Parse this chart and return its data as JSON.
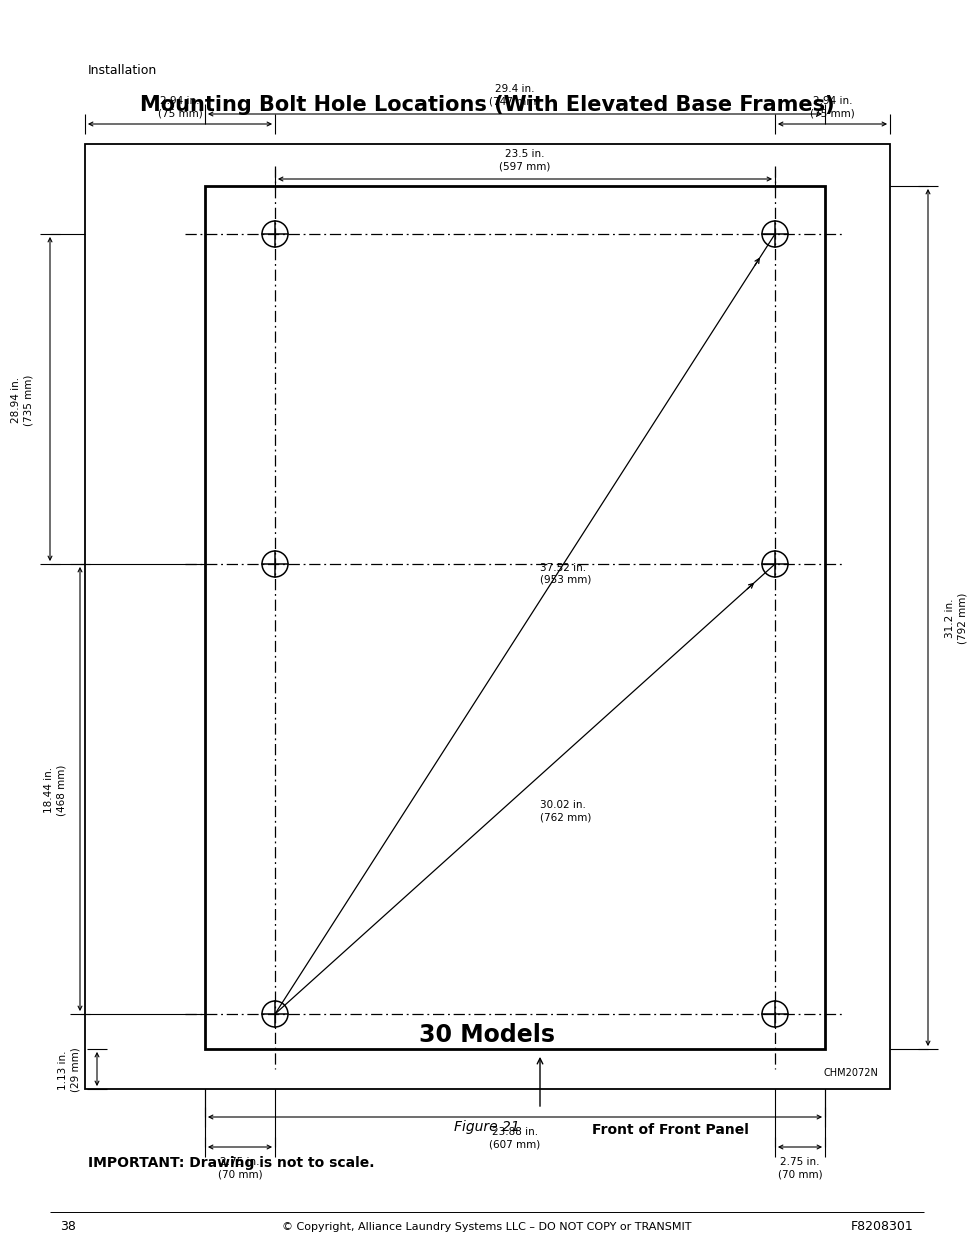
{
  "title": "Mounting Bolt Hole Locations (With Elevated Base Frames)",
  "section_label": "Installation",
  "figure_label": "Figure 21",
  "model_label": "30 Models",
  "front_panel_label": "Front of Front Panel",
  "important_text": "IMPORTANT: Drawing is not to scale.",
  "copyright_text": "© Copyright, Alliance Laundry Systems LLC – DO NOT COPY or TRANSMIT",
  "page_num": "38",
  "doc_num": "F8208301",
  "model_code": "CHM2072N",
  "dim_top_width_text": "29.4 in.\n(747 mm)",
  "dim_inner_width_text": "23.5 in.\n(597 mm)",
  "dim_bottom_width_text": "23.88 in.\n(607 mm)",
  "dim_left_height_text": "28.94 in.\n(735 mm)",
  "dim_left_mid_text": "18.44 in.\n(468 mm)",
  "dim_right_height_text": "31.2 in.\n(792 mm)",
  "dim_left_inset_text": "2.94 in.\n(75 mm)",
  "dim_right_inset_text": "2.94 in.\n(75 mm)",
  "dim_bottom_inset_text": "1.13 in.\n(29 mm)",
  "dim_bottom_left_text": "2.75 in.\n(70 mm)",
  "dim_bottom_right_text": "2.75 in.\n(70 mm)",
  "dim_diag1_text": "37.52 in.\n(953 mm)",
  "dim_diag2_text": "30.02 in.\n(762 mm)",
  "bg_color": "#ffffff",
  "text_color": "#000000"
}
